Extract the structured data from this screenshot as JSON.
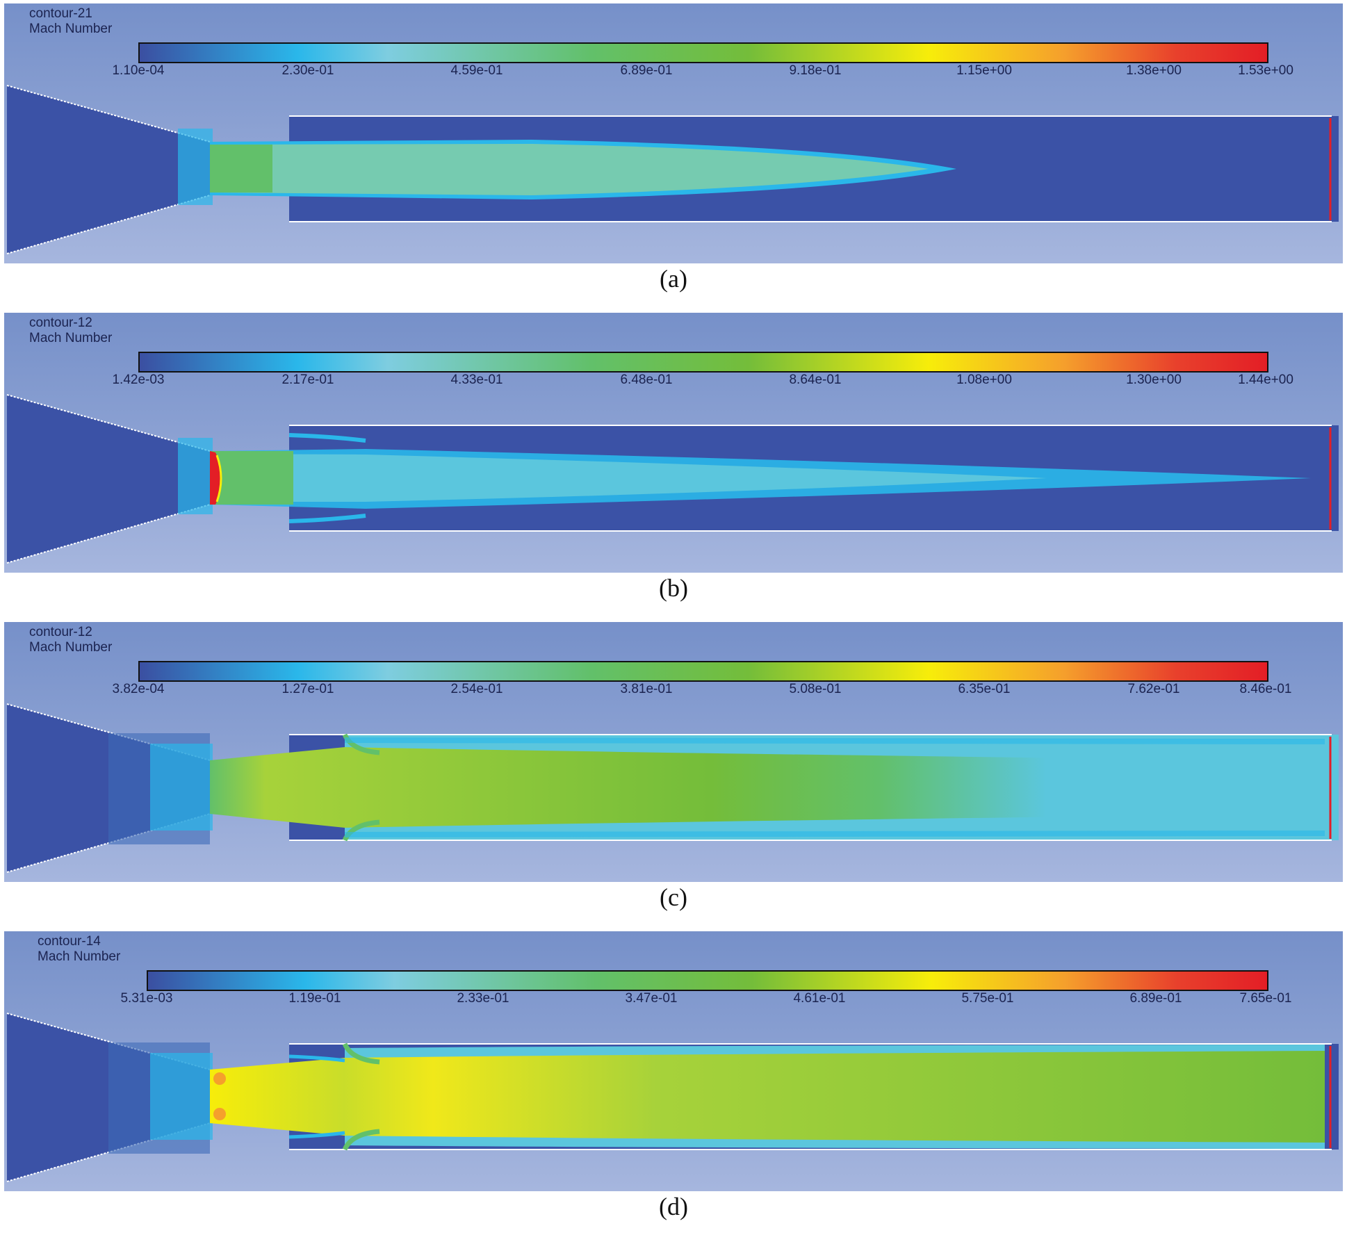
{
  "panels": [
    {
      "caption": "(a)",
      "contour_name": "contour-21",
      "variable": "Mach Number",
      "ticks": [
        "1.10e-04",
        "2.30e-01",
        "4.59e-01",
        "6.89e-01",
        "9.18e-01",
        "1.15e+00",
        "1.38e+00",
        "1.53e+00"
      ]
    },
    {
      "caption": "(b)",
      "contour_name": "contour-12",
      "variable": "Mach Number",
      "ticks": [
        "1.42e-03",
        "2.17e-01",
        "4.33e-01",
        "6.48e-01",
        "8.64e-01",
        "1.08e+00",
        "1.30e+00",
        "1.44e+00"
      ]
    },
    {
      "caption": "(c)",
      "contour_name": "contour-12",
      "variable": "Mach Number",
      "ticks": [
        "3.82e-04",
        "1.27e-01",
        "2.54e-01",
        "3.81e-01",
        "5.08e-01",
        "6.35e-01",
        "7.62e-01",
        "8.46e-01"
      ]
    },
    {
      "caption": "(d)",
      "contour_name": "contour-14",
      "variable": "Mach Number",
      "ticks": [
        "5.31e-03",
        "1.19e-01",
        "2.33e-01",
        "3.47e-01",
        "4.61e-01",
        "5.75e-01",
        "6.89e-01",
        "7.65e-01"
      ]
    }
  ],
  "colors": {
    "low": "#3b4fa1",
    "cyan": "#2ab7ea",
    "green": "#74bd3a",
    "yellow": "#f7ed0a",
    "high": "#e31e26"
  }
}
